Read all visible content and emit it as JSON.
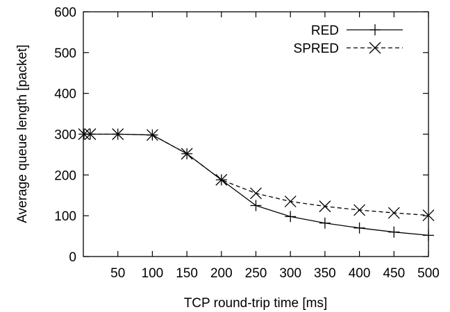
{
  "chart_data": {
    "type": "line",
    "title": "",
    "xlabel": "TCP round-trip time [ms]",
    "ylabel": "Average queue length [packet]",
    "xlim": [
      0,
      500
    ],
    "ylim": [
      0,
      600
    ],
    "xticks": [
      50,
      100,
      150,
      200,
      250,
      300,
      350,
      400,
      450,
      500
    ],
    "yticks": [
      0,
      100,
      200,
      300,
      400,
      500,
      600
    ],
    "grid": false,
    "legend_position": "top-right",
    "series": [
      {
        "name": "RED",
        "line_style": "solid",
        "marker": "plus",
        "x": [
          1,
          10,
          50,
          100,
          150,
          200,
          250,
          300,
          350,
          400,
          450,
          500
        ],
        "y": [
          300,
          300,
          300,
          298,
          252,
          188,
          125,
          98,
          82,
          70,
          60,
          52
        ]
      },
      {
        "name": "SPRED",
        "line_style": "dashed",
        "marker": "cross",
        "x": [
          1,
          10,
          50,
          100,
          150,
          200,
          250,
          300,
          350,
          400,
          450,
          500
        ],
        "y": [
          300,
          300,
          300,
          298,
          252,
          188,
          155,
          135,
          123,
          114,
          107,
          101
        ]
      }
    ]
  }
}
